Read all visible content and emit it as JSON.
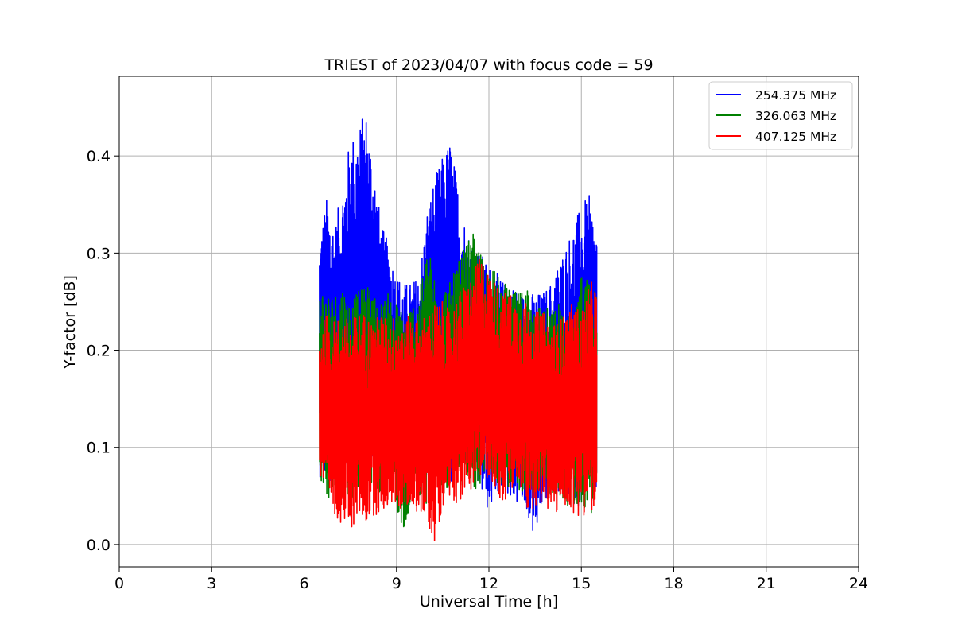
{
  "chart_data": {
    "type": "line",
    "title": "TRIEST of 2023/04/07 with focus code = 59",
    "xlabel": "Universal Time [h]",
    "ylabel": "Y-factor [dB]",
    "xlim": [
      0,
      24
    ],
    "ylim": [
      -0.023,
      0.482
    ],
    "xticks": [
      0,
      3,
      6,
      9,
      12,
      15,
      18,
      21,
      24
    ],
    "xtick_labels": [
      "0",
      "3",
      "6",
      "9",
      "12",
      "15",
      "18",
      "21",
      "24"
    ],
    "yticks": [
      0.0,
      0.1,
      0.2,
      0.3,
      0.4
    ],
    "ytick_labels": [
      "0.0",
      "0.1",
      "0.2",
      "0.3",
      "0.4"
    ],
    "grid": true,
    "legend_position": "top-right",
    "series": [
      {
        "name": "254.375 MHz",
        "color": "#0000ff",
        "x": [
          6.5,
          6.75,
          7.0,
          7.25,
          7.5,
          7.75,
          8.0,
          8.25,
          8.5,
          8.75,
          9.0,
          9.25,
          9.5,
          9.75,
          10.0,
          10.25,
          10.5,
          10.75,
          11.0,
          11.25,
          11.5,
          11.75,
          12.0,
          12.25,
          12.5,
          12.75,
          13.0,
          13.25,
          13.5,
          13.75,
          14.0,
          14.25,
          14.5,
          14.75,
          15.0,
          15.25,
          15.5
        ],
        "upper": [
          0.32,
          0.36,
          0.33,
          0.37,
          0.42,
          0.43,
          0.45,
          0.4,
          0.33,
          0.31,
          0.28,
          0.27,
          0.27,
          0.28,
          0.35,
          0.38,
          0.4,
          0.42,
          0.37,
          0.33,
          0.31,
          0.3,
          0.29,
          0.28,
          0.27,
          0.27,
          0.26,
          0.26,
          0.26,
          0.26,
          0.27,
          0.29,
          0.31,
          0.33,
          0.35,
          0.36,
          0.33
        ],
        "lower": [
          0.07,
          0.06,
          0.06,
          0.07,
          0.08,
          0.07,
          0.07,
          0.08,
          0.07,
          0.07,
          0.06,
          0.05,
          0.06,
          0.07,
          0.06,
          0.07,
          0.07,
          0.06,
          0.07,
          0.08,
          0.07,
          0.05,
          0.03,
          0.05,
          0.06,
          0.04,
          0.04,
          0.03,
          0.0,
          0.04,
          0.05,
          0.05,
          0.05,
          0.04,
          0.04,
          0.05,
          0.05
        ]
      },
      {
        "name": "326.063 MHz",
        "color": "#008000",
        "x": [
          6.5,
          6.75,
          7.0,
          7.25,
          7.5,
          7.75,
          8.0,
          8.25,
          8.5,
          8.75,
          9.0,
          9.25,
          9.5,
          9.75,
          10.0,
          10.25,
          10.5,
          10.75,
          11.0,
          11.25,
          11.5,
          11.75,
          12.0,
          12.25,
          12.5,
          12.75,
          13.0,
          13.25,
          13.5,
          13.75,
          14.0,
          14.25,
          14.5,
          14.75,
          15.0,
          15.25,
          15.5
        ],
        "upper": [
          0.27,
          0.26,
          0.26,
          0.27,
          0.25,
          0.26,
          0.27,
          0.26,
          0.25,
          0.26,
          0.25,
          0.24,
          0.25,
          0.26,
          0.31,
          0.28,
          0.27,
          0.27,
          0.29,
          0.31,
          0.32,
          0.3,
          0.29,
          0.28,
          0.27,
          0.26,
          0.26,
          0.27,
          0.25,
          0.25,
          0.24,
          0.25,
          0.24,
          0.23,
          0.28,
          0.27,
          0.26
        ],
        "lower": [
          0.07,
          0.05,
          0.04,
          0.05,
          0.04,
          0.05,
          0.05,
          0.06,
          0.05,
          0.05,
          0.04,
          0.0,
          0.05,
          0.05,
          0.04,
          0.06,
          0.05,
          0.06,
          0.06,
          0.06,
          0.05,
          0.06,
          0.08,
          0.06,
          0.06,
          0.05,
          0.05,
          0.06,
          0.05,
          0.06,
          0.05,
          0.05,
          0.04,
          0.04,
          0.04,
          0.03,
          0.04
        ]
      },
      {
        "name": "407.125 MHz",
        "color": "#ff0000",
        "x": [
          6.5,
          6.75,
          7.0,
          7.25,
          7.5,
          7.75,
          8.0,
          8.25,
          8.5,
          8.75,
          9.0,
          9.25,
          9.5,
          9.75,
          10.0,
          10.25,
          10.5,
          10.75,
          11.0,
          11.25,
          11.5,
          11.75,
          12.0,
          12.25,
          12.5,
          12.75,
          13.0,
          13.25,
          13.5,
          13.75,
          14.0,
          14.25,
          14.5,
          14.75,
          15.0,
          15.25,
          15.5
        ],
        "upper": [
          0.22,
          0.24,
          0.23,
          0.24,
          0.23,
          0.24,
          0.24,
          0.23,
          0.24,
          0.23,
          0.24,
          0.23,
          0.24,
          0.23,
          0.24,
          0.25,
          0.25,
          0.24,
          0.26,
          0.27,
          0.28,
          0.3,
          0.28,
          0.27,
          0.26,
          0.26,
          0.25,
          0.25,
          0.24,
          0.24,
          0.23,
          0.23,
          0.24,
          0.25,
          0.24,
          0.27,
          0.27
        ],
        "lower": [
          0.07,
          0.04,
          0.03,
          0.02,
          0.01,
          0.03,
          0.02,
          0.03,
          0.03,
          0.04,
          0.04,
          0.03,
          0.04,
          0.03,
          0.02,
          0.0,
          0.04,
          0.05,
          0.04,
          0.05,
          0.06,
          0.06,
          0.07,
          0.05,
          0.04,
          0.05,
          0.06,
          0.03,
          0.04,
          0.04,
          0.03,
          0.03,
          0.04,
          0.03,
          0.03,
          0.03,
          0.03
        ]
      }
    ]
  }
}
